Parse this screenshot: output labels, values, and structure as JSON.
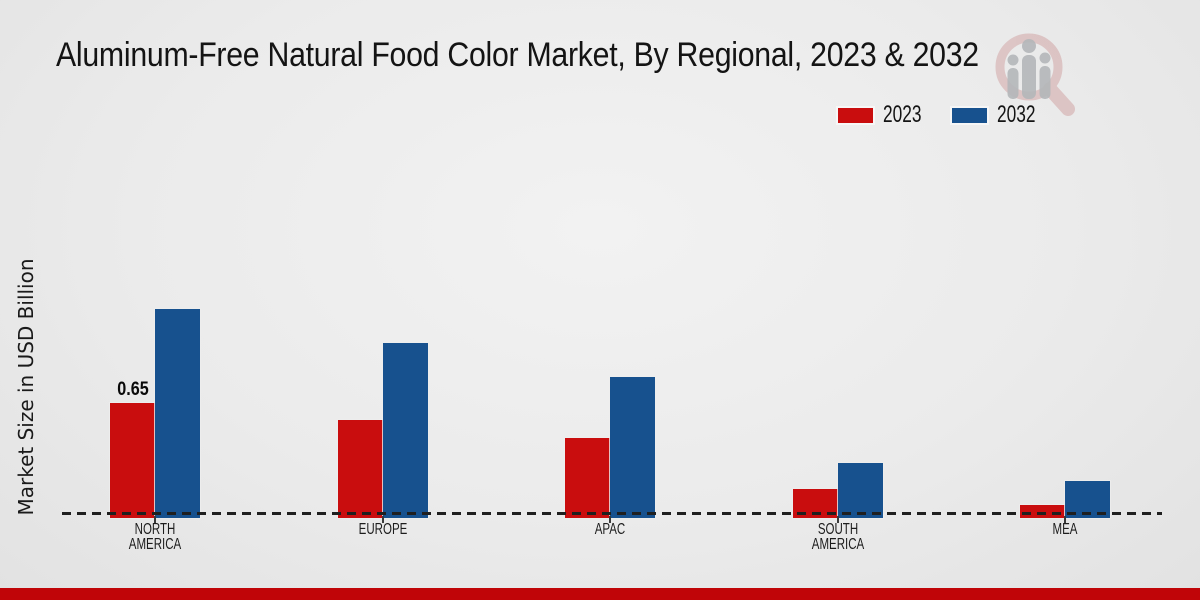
{
  "title": "Aluminum-Free Natural Food Color Market, By Regional, 2023 & 2032",
  "ylabel": "Market Size in USD Billion",
  "footer_bar_color": "#c00508",
  "watermark_icon": "magnifier-bar-chart-logo",
  "watermark_colors": {
    "ring": "#cf9f9f",
    "figures": "#b4b7ba"
  },
  "chart_data": {
    "type": "bar",
    "title": "Aluminum-Free Natural Food Color Market, By Regional, 2023 & 2032",
    "xlabel": "",
    "ylabel": "Market Size in USD Billion",
    "categories": [
      "NORTH AMERICA",
      "EUROPE",
      "APAC",
      "SOUTH AMERICA",
      "MEA"
    ],
    "category_lines": [
      [
        "NORTH",
        "AMERICA"
      ],
      [
        "EUROPE"
      ],
      [
        "APAC"
      ],
      [
        "SOUTH",
        "AMERICA"
      ],
      [
        "MEA"
      ]
    ],
    "series": [
      {
        "name": "2023",
        "color": "#c90d0e",
        "values": [
          0.65,
          0.55,
          0.45,
          0.15,
          0.06
        ]
      },
      {
        "name": "2032",
        "color": "#17518e",
        "values": [
          1.2,
          1.0,
          0.8,
          0.3,
          0.2
        ]
      }
    ],
    "annotations": [
      {
        "category_index": 0,
        "series_index": 0,
        "text": "0.65"
      }
    ],
    "ylim": [
      0,
      1.4
    ],
    "grid": false,
    "axis_style": "dashed-baseline-only",
    "legend_position": "top-right"
  }
}
